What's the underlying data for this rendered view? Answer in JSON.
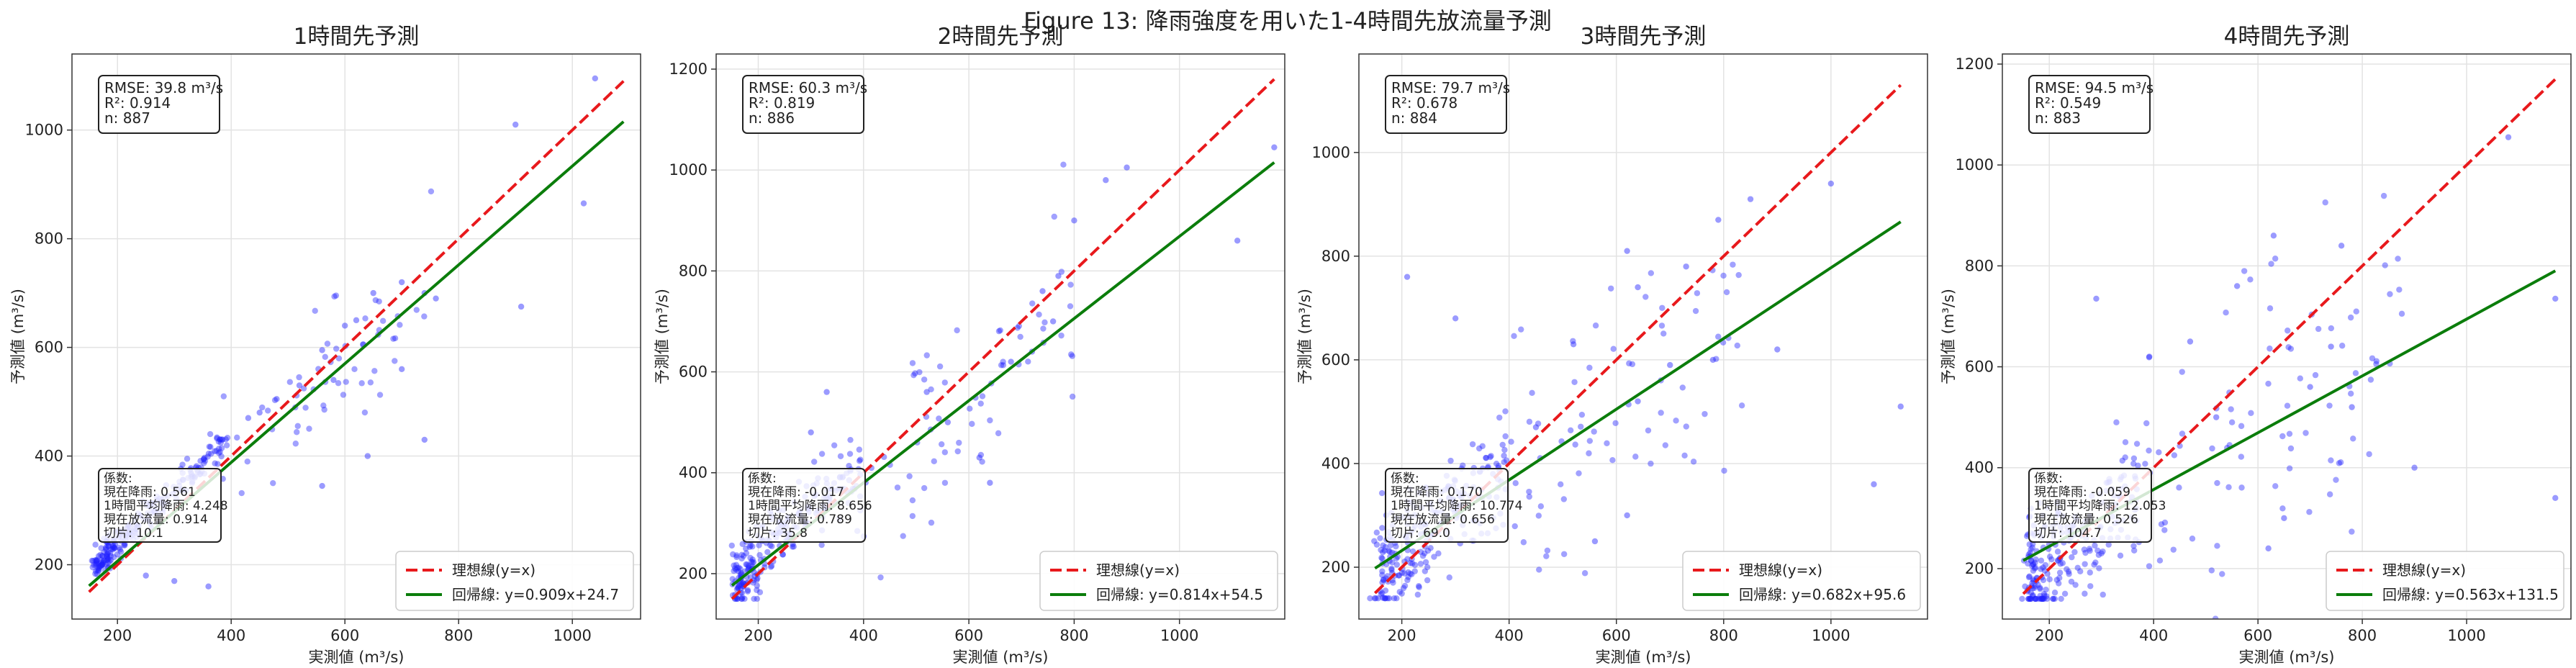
{
  "suptitle": "Figure 13: 降雨強度を用いた1-4時間先放流量予測",
  "chart_data": [
    {
      "type": "scatter",
      "title": "1時間先予測",
      "xlabel": "実測値 (m³/s)",
      "ylabel": "予測値 (m³/s)",
      "xlim": [
        120,
        1120
      ],
      "ylim": [
        100,
        1140
      ],
      "xticks": [
        200,
        400,
        600,
        800,
        1000
      ],
      "yticks": [
        200,
        400,
        600,
        800,
        1000
      ],
      "xtick_labels": [
        "200",
        "400",
        "600",
        "800",
        "1000"
      ],
      "ytick_labels": [
        "200",
        "400",
        "600",
        "800",
        "1000"
      ],
      "grid": true,
      "ideal": {
        "x": [
          150,
          1090
        ],
        "y": [
          150,
          1090
        ]
      },
      "regression": {
        "slope": 0.909,
        "intercept": 24.7,
        "x": [
          150,
          1090
        ]
      },
      "seed": 11,
      "points": [
        [
          1040,
          1095
        ],
        [
          1020,
          865
        ],
        [
          900,
          1010
        ],
        [
          910,
          675
        ],
        [
          760,
          690
        ],
        [
          640,
          400
        ],
        [
          700,
          560
        ],
        [
          740,
          430
        ],
        [
          560,
          595
        ],
        [
          520,
          530
        ],
        [
          480,
          505
        ],
        [
          450,
          480
        ],
        [
          430,
          470
        ],
        [
          580,
          540
        ],
        [
          560,
          345
        ],
        [
          250,
          180
        ],
        [
          300,
          170
        ],
        [
          360,
          160
        ],
        [
          620,
          650
        ],
        [
          650,
          700
        ],
        [
          600,
          640
        ],
        [
          700,
          720
        ],
        [
          740,
          700
        ]
      ],
      "stats": {
        "lines": [
          "RMSE: 39.8 m³/s",
          "R²: 0.914",
          "n: 887"
        ]
      },
      "coef": {
        "lines": [
          "係数:",
          "現在降雨: 0.561",
          "1時間平均降雨: 4.248",
          "現在放流量: 0.914",
          "切片: 10.1"
        ]
      },
      "legend": {
        "position": "lower-right",
        "entries": [
          "理想線(y=x)",
          "回帰線: y=0.909x+24.7"
        ]
      }
    },
    {
      "type": "scatter",
      "title": "2時間先予測",
      "xlabel": "実測値 (m³/s)",
      "ylabel": "予測値 (m³/s)",
      "xlim": [
        120,
        1200
      ],
      "ylim": [
        110,
        1230
      ],
      "xticks": [
        200,
        400,
        600,
        800,
        1000
      ],
      "yticks": [
        200,
        400,
        600,
        800,
        1000,
        1200
      ],
      "xtick_labels": [
        "200",
        "400",
        "600",
        "800",
        "1000"
      ],
      "ytick_labels": [
        "200",
        "400",
        "600",
        "800",
        "1000",
        "1200"
      ],
      "grid": true,
      "ideal": {
        "x": [
          150,
          1180
        ],
        "y": [
          150,
          1180
        ]
      },
      "regression": {
        "slope": 0.814,
        "intercept": 54.5,
        "x": [
          150,
          1180
        ]
      },
      "seed": 22,
      "points": [
        [
          1180,
          1045
        ],
        [
          1110,
          860
        ],
        [
          900,
          1005
        ],
        [
          860,
          980
        ],
        [
          800,
          900
        ],
        [
          770,
          790
        ],
        [
          740,
          760
        ],
        [
          720,
          640
        ],
        [
          620,
          430
        ],
        [
          640,
          380
        ],
        [
          520,
          560
        ],
        [
          330,
          560
        ],
        [
          300,
          480
        ],
        [
          680,
          620
        ],
        [
          760,
          700
        ],
        [
          560,
          500
        ],
        [
          250,
          300
        ]
      ],
      "stats": {
        "lines": [
          "RMSE: 60.3 m³/s",
          "R²: 0.819",
          "n: 886"
        ]
      },
      "coef": {
        "lines": [
          "係数:",
          "現在降雨: -0.017",
          "1時間平均降雨: 8.656",
          "現在放流量: 0.789",
          "切片: 35.8"
        ]
      },
      "legend": {
        "position": "lower-right",
        "entries": [
          "理想線(y=x)",
          "回帰線: y=0.814x+54.5"
        ]
      }
    },
    {
      "type": "scatter",
      "title": "3時間先予測",
      "xlabel": "実測値 (m³/s)",
      "ylabel": "予測値 (m³/s)",
      "xlim": [
        120,
        1180
      ],
      "ylim": [
        100,
        1190
      ],
      "xticks": [
        200,
        400,
        600,
        800,
        1000
      ],
      "yticks": [
        200,
        400,
        600,
        800,
        1000
      ],
      "xtick_labels": [
        "200",
        "400",
        "600",
        "800",
        "1000"
      ],
      "ytick_labels": [
        "200",
        "400",
        "600",
        "800",
        "1000"
      ],
      "grid": true,
      "ideal": {
        "x": [
          150,
          1130
        ],
        "y": [
          150,
          1130
        ]
      },
      "regression": {
        "slope": 0.682,
        "intercept": 95.6,
        "x": [
          150,
          1130
        ]
      },
      "seed": 33,
      "points": [
        [
          1130,
          510
        ],
        [
          1000,
          940
        ],
        [
          1080,
          360
        ],
        [
          850,
          910
        ],
        [
          790,
          870
        ],
        [
          730,
          780
        ],
        [
          620,
          810
        ],
        [
          640,
          740
        ],
        [
          300,
          680
        ],
        [
          210,
          760
        ],
        [
          520,
          630
        ],
        [
          780,
          600
        ],
        [
          700,
          590
        ],
        [
          620,
          300
        ],
        [
          560,
          250
        ],
        [
          900,
          620
        ],
        [
          450,
          470
        ],
        [
          640,
          520
        ]
      ],
      "stats": {
        "lines": [
          "RMSE: 79.7 m³/s",
          "R²: 0.678",
          "n: 884"
        ]
      },
      "coef": {
        "lines": [
          "係数:",
          "現在降雨: 0.170",
          "1時間平均降雨: 10.774",
          "現在放流量: 0.656",
          "切片: 69.0"
        ]
      },
      "legend": {
        "position": "lower-right",
        "entries": [
          "理想線(y=x)",
          "回帰線: y=0.682x+95.6"
        ]
      }
    },
    {
      "type": "scatter",
      "title": "4時間先予測",
      "xlabel": "実測値 (m³/s)",
      "ylabel": "予測値 (m³/s)",
      "xlim": [
        110,
        1200
      ],
      "ylim": [
        100,
        1220
      ],
      "xticks": [
        200,
        400,
        600,
        800,
        1000
      ],
      "yticks": [
        200,
        400,
        600,
        800,
        1000,
        1200
      ],
      "xtick_labels": [
        "200",
        "400",
        "600",
        "800",
        "1000"
      ],
      "ytick_labels": [
        "200",
        "400",
        "600",
        "800",
        "1000",
        "1200"
      ],
      "grid": true,
      "ideal": {
        "x": [
          150,
          1170
        ],
        "y": [
          150,
          1170
        ]
      },
      "regression": {
        "slope": 0.563,
        "intercept": 131.5,
        "x": [
          150,
          1170
        ]
      },
      "seed": 44,
      "points": [
        [
          1170,
          735
        ],
        [
          1080,
          1055
        ],
        [
          760,
          840
        ],
        [
          630,
          860
        ],
        [
          290,
          735
        ],
        [
          1170,
          340
        ],
        [
          900,
          400
        ],
        [
          560,
          760
        ],
        [
          650,
          300
        ],
        [
          620,
          240
        ],
        [
          740,
          640
        ],
        [
          470,
          650
        ],
        [
          780,
          520
        ],
        [
          700,
          560
        ],
        [
          520,
          500
        ]
      ],
      "stats": {
        "lines": [
          "RMSE: 94.5 m³/s",
          "R²: 0.549",
          "n: 883"
        ]
      },
      "coef": {
        "lines": [
          "係数:",
          "現在降雨: -0.059",
          "1時間平均降雨: 12.053",
          "現在放流量: 0.526",
          "切片: 104.7"
        ]
      },
      "legend": {
        "position": "lower-right",
        "entries": [
          "理想線(y=x)",
          "回帰線: y=0.563x+131.5"
        ]
      }
    }
  ],
  "colors": {
    "points": "#1f1fff",
    "ideal": "#e8191c",
    "regression": "#0b7d0b",
    "axis": "#333333",
    "grid": "#e3e3e3"
  }
}
